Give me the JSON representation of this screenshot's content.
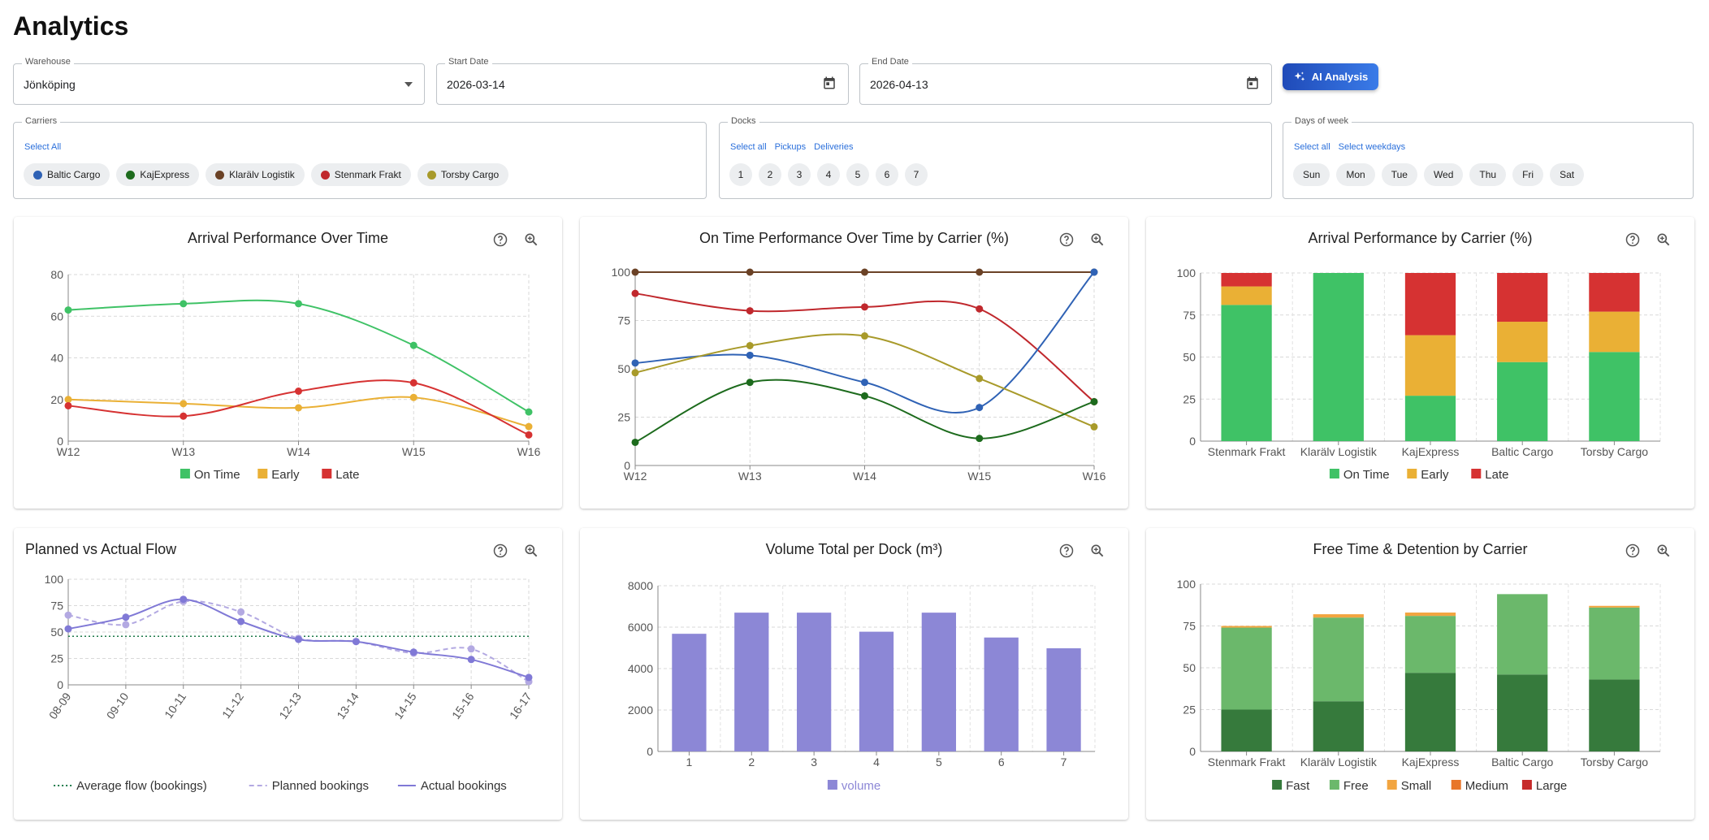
{
  "page": {
    "title": "Analytics"
  },
  "filters": {
    "warehouse": {
      "label": "Warehouse",
      "value": "Jönköping"
    },
    "start_date": {
      "label": "Start Date",
      "value": "2026-03-14"
    },
    "end_date": {
      "label": "End Date",
      "value": "2026-04-13"
    },
    "ai_button": {
      "label": "AI Analysis"
    }
  },
  "carriers": {
    "label": "Carriers",
    "select_all": "Select All",
    "items": [
      {
        "name": "Baltic Cargo",
        "color": "#2f62b5"
      },
      {
        "name": "KajExpress",
        "color": "#1d6b1d"
      },
      {
        "name": "Klarälv Logistik",
        "color": "#6b4226"
      },
      {
        "name": "Stenmark Frakt",
        "color": "#c0282d"
      },
      {
        "name": "Torsby Cargo",
        "color": "#a89a2a"
      }
    ]
  },
  "docks": {
    "label": "Docks",
    "links": [
      "Select all",
      "Pickups",
      "Deliveries"
    ],
    "items": [
      "1",
      "2",
      "3",
      "4",
      "5",
      "6",
      "7"
    ]
  },
  "days": {
    "label": "Days of week",
    "links": [
      "Select all",
      "Select weekdays"
    ],
    "items": [
      "Sun",
      "Mon",
      "Tue",
      "Wed",
      "Thu",
      "Fri",
      "Sat"
    ]
  },
  "chart_data": [
    {
      "id": "arrival-performance",
      "type": "line",
      "title": "Arrival Performance Over Time",
      "categories": [
        "W12",
        "W13",
        "W14",
        "W15",
        "W16"
      ],
      "ylim": [
        0,
        80
      ],
      "yticks": [
        0,
        20,
        40,
        60,
        80
      ],
      "grid": true,
      "legend": "bottom",
      "series": [
        {
          "name": "On Time",
          "color": "#3fc266",
          "values": [
            63,
            66,
            66,
            46,
            14
          ]
        },
        {
          "name": "Early",
          "color": "#eab035",
          "values": [
            20,
            18,
            16,
            21,
            7
          ]
        },
        {
          "name": "Late",
          "color": "#d63232",
          "values": [
            17,
            12,
            24,
            28,
            3
          ]
        }
      ]
    },
    {
      "id": "ontime-by-carrier",
      "type": "line",
      "title": "On Time Performance Over Time by Carrier (%)",
      "categories": [
        "W12",
        "W13",
        "W14",
        "W15",
        "W16"
      ],
      "ylim": [
        0,
        100
      ],
      "yticks": [
        0,
        25,
        50,
        75,
        100
      ],
      "grid": true,
      "series": [
        {
          "color": "#6b4226",
          "values": [
            100,
            100,
            100,
            100,
            100
          ]
        },
        {
          "color": "#c0282d",
          "values": [
            89,
            80,
            82,
            81,
            33
          ]
        },
        {
          "color": "#2f62b5",
          "values": [
            53,
            57,
            43,
            30,
            100
          ]
        },
        {
          "color": "#a89a2a",
          "values": [
            48,
            62,
            67,
            45,
            20
          ]
        },
        {
          "color": "#1d6b1d",
          "values": [
            12,
            43,
            36,
            14,
            33
          ]
        }
      ]
    },
    {
      "id": "arrival-by-carrier",
      "type": "bar",
      "stacked": true,
      "title": "Arrival Performance by Carrier (%)",
      "categories": [
        "Stenmark Frakt",
        "Klarälv Logistik",
        "KajExpress",
        "Baltic Cargo",
        "Torsby Cargo"
      ],
      "ylim": [
        0,
        100
      ],
      "yticks": [
        0,
        25,
        50,
        75,
        100
      ],
      "grid": true,
      "legend": "bottom",
      "series": [
        {
          "name": "On Time",
          "color": "#3fc266",
          "values": [
            81,
            100,
            27,
            47,
            53
          ]
        },
        {
          "name": "Early",
          "color": "#eab035",
          "values": [
            11,
            0,
            36,
            24,
            24
          ]
        },
        {
          "name": "Late",
          "color": "#d63232",
          "values": [
            8,
            0,
            37,
            29,
            23
          ]
        }
      ]
    },
    {
      "id": "planned-vs-actual",
      "type": "line",
      "title": "Planned vs Actual Flow",
      "categories": [
        "08-09",
        "09-10",
        "10-11",
        "11-12",
        "12-13",
        "13-14",
        "14-15",
        "15-16",
        "16-17"
      ],
      "ylim": [
        0,
        100
      ],
      "yticks": [
        0,
        25,
        50,
        75,
        100
      ],
      "grid": true,
      "legend": "bottom",
      "series": [
        {
          "name": "Average flow (bookings)",
          "color": "#1d7a4a",
          "style": "dotted",
          "values": [
            46,
            46,
            46,
            46,
            46,
            46,
            46,
            46,
            46
          ]
        },
        {
          "name": "Planned bookings",
          "color": "#b3a9e2",
          "style": "dashed",
          "values": [
            66,
            57,
            79,
            69,
            44,
            41,
            30,
            34,
            3
          ]
        },
        {
          "name": "Actual bookings",
          "color": "#8079d6",
          "style": "solid",
          "values": [
            53,
            64,
            81,
            60,
            43,
            41,
            31,
            24,
            7
          ]
        }
      ]
    },
    {
      "id": "volume-per-dock",
      "type": "bar",
      "title": "Volume Total per Dock (m³)",
      "categories": [
        "1",
        "2",
        "3",
        "4",
        "5",
        "6",
        "7"
      ],
      "ylim": [
        0,
        8000
      ],
      "yticks": [
        0,
        2000,
        4000,
        6000,
        8000
      ],
      "grid": true,
      "legend": "bottom",
      "series": [
        {
          "name": "volume",
          "color": "#8c87d6",
          "values": [
            5680,
            6700,
            6700,
            5780,
            6700,
            5500,
            4980
          ]
        }
      ]
    },
    {
      "id": "free-time-detention",
      "type": "bar",
      "stacked": true,
      "title": "Free Time & Detention by Carrier",
      "categories": [
        "Stenmark Frakt",
        "Klarälv Logistik",
        "KajExpress",
        "Baltic Cargo",
        "Torsby Cargo"
      ],
      "ylim": [
        0,
        100
      ],
      "yticks": [
        0,
        25,
        50,
        75,
        100
      ],
      "grid": true,
      "legend": "bottom",
      "series": [
        {
          "name": "Fast",
          "color": "#367a3c",
          "values": [
            25,
            30,
            47,
            46,
            43
          ]
        },
        {
          "name": "Free",
          "color": "#6bb86b",
          "values": [
            49,
            50,
            34,
            48,
            43
          ]
        },
        {
          "name": "Small",
          "color": "#f2a540",
          "values": [
            1,
            2,
            2,
            0,
            1
          ]
        },
        {
          "name": "Medium",
          "color": "#e8762a",
          "values": [
            0,
            0,
            0,
            0,
            0
          ]
        },
        {
          "name": "Large",
          "color": "#c62a2a",
          "values": [
            0,
            0,
            0,
            0,
            0
          ]
        }
      ]
    }
  ]
}
